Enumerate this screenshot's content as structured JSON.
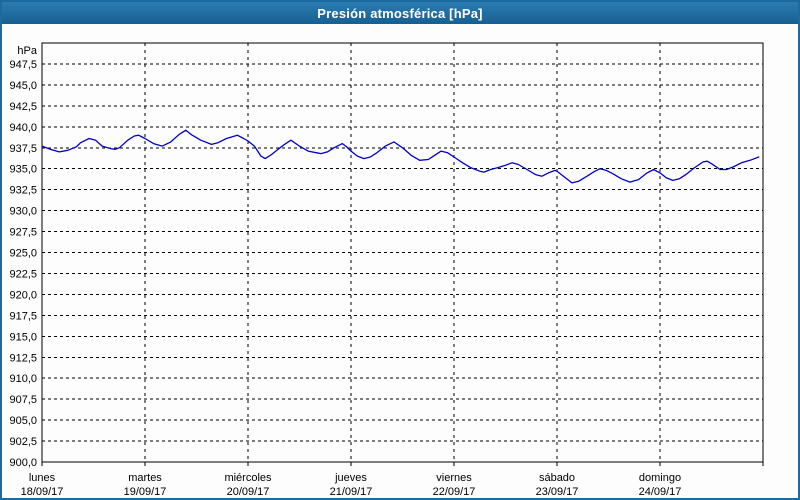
{
  "window": {
    "title": "Presión atmosférica [hPa]"
  },
  "colors": {
    "titlebar": "#1e6a9e",
    "window_border": "#1e6a9e",
    "line": "#0000c8",
    "grid": "#000000",
    "text": "#000000",
    "background": "#fdfdfd"
  },
  "chart_data": {
    "type": "line",
    "title": "Presión atmosférica [hPa]",
    "ylabel": "hPa",
    "y_unit_label": "hPa",
    "ylim": [
      900,
      950
    ],
    "y_tick_step": 2.5,
    "y_tick_labels": [
      "947,5",
      "945,0",
      "942,5",
      "940,0",
      "937,5",
      "935,0",
      "932,5",
      "930,0",
      "927,5",
      "925,0",
      "922,5",
      "920,0",
      "917,5",
      "915,0",
      "912,5",
      "910,0",
      "907,5",
      "905,0",
      "902,5",
      "900,0"
    ],
    "xlim_hours": [
      0,
      168
    ],
    "x_day_step_hours": 24,
    "grid": "dashed",
    "legend": "none",
    "x_days": [
      {
        "name": "lunes",
        "date": "18/09/17"
      },
      {
        "name": "martes",
        "date": "19/09/17"
      },
      {
        "name": "miércoles",
        "date": "20/09/17"
      },
      {
        "name": "jueves",
        "date": "21/09/17"
      },
      {
        "name": "viernes",
        "date": "22/09/17"
      },
      {
        "name": "sábado",
        "date": "23/09/17"
      },
      {
        "name": "domingo",
        "date": "24/09/17"
      }
    ],
    "series": [
      {
        "name": "Presión atmosférica",
        "points_hours_hpa": [
          [
            0,
            937.7
          ],
          [
            2,
            937.3
          ],
          [
            4,
            937.0
          ],
          [
            6,
            937.2
          ],
          [
            8,
            937.6
          ],
          [
            9,
            938.1
          ],
          [
            11,
            938.6
          ],
          [
            12.5,
            938.4
          ],
          [
            14,
            937.7
          ],
          [
            16,
            937.4
          ],
          [
            17,
            937.3
          ],
          [
            18,
            937.5
          ],
          [
            20,
            938.4
          ],
          [
            21.5,
            938.9
          ],
          [
            22.5,
            939.0
          ],
          [
            24,
            938.6
          ],
          [
            26,
            938.0
          ],
          [
            28,
            937.7
          ],
          [
            30,
            938.2
          ],
          [
            32,
            939.1
          ],
          [
            33.5,
            939.6
          ],
          [
            35,
            939.0
          ],
          [
            37,
            938.4
          ],
          [
            39.5,
            937.9
          ],
          [
            41,
            938.1
          ],
          [
            43,
            938.6
          ],
          [
            45.5,
            939.0
          ],
          [
            47,
            938.6
          ],
          [
            48,
            938.3
          ],
          [
            49.5,
            937.7
          ],
          [
            51,
            936.5
          ],
          [
            52,
            936.2
          ],
          [
            53.5,
            936.7
          ],
          [
            55,
            937.3
          ],
          [
            56.5,
            937.9
          ],
          [
            58,
            938.4
          ],
          [
            60,
            937.7
          ],
          [
            62,
            937.1
          ],
          [
            64,
            936.9
          ],
          [
            65,
            936.8
          ],
          [
            66.5,
            937.0
          ],
          [
            68,
            937.5
          ],
          [
            70,
            938.0
          ],
          [
            71,
            937.6
          ],
          [
            72,
            937.1
          ],
          [
            73.5,
            936.5
          ],
          [
            75,
            936.2
          ],
          [
            76.5,
            936.4
          ],
          [
            78,
            936.9
          ],
          [
            80,
            937.7
          ],
          [
            82,
            938.2
          ],
          [
            84,
            937.5
          ],
          [
            86,
            936.6
          ],
          [
            88,
            936.0
          ],
          [
            90,
            936.1
          ],
          [
            91.5,
            936.6
          ],
          [
            93,
            937.1
          ],
          [
            94.5,
            936.9
          ],
          [
            96,
            936.4
          ],
          [
            98,
            935.7
          ],
          [
            100,
            935.1
          ],
          [
            102,
            934.7
          ],
          [
            103,
            934.6
          ],
          [
            104.5,
            934.9
          ],
          [
            106,
            935.1
          ],
          [
            108,
            935.4
          ],
          [
            109.5,
            935.7
          ],
          [
            111,
            935.5
          ],
          [
            113,
            934.9
          ],
          [
            115,
            934.3
          ],
          [
            116.5,
            934.1
          ],
          [
            118,
            934.5
          ],
          [
            119.5,
            934.8
          ],
          [
            120,
            934.7
          ],
          [
            121.5,
            934.1
          ],
          [
            123.5,
            933.3
          ],
          [
            125,
            933.5
          ],
          [
            127,
            934.1
          ],
          [
            128.5,
            934.6
          ],
          [
            130,
            935.0
          ],
          [
            131.5,
            934.8
          ],
          [
            133,
            934.4
          ],
          [
            135,
            933.8
          ],
          [
            137,
            933.4
          ],
          [
            139,
            933.7
          ],
          [
            141,
            934.5
          ],
          [
            142.5,
            934.9
          ],
          [
            144,
            934.5
          ],
          [
            145.5,
            933.9
          ],
          [
            147,
            933.6
          ],
          [
            148.5,
            933.8
          ],
          [
            150,
            934.3
          ],
          [
            152,
            935.1
          ],
          [
            154,
            935.8
          ],
          [
            155,
            935.9
          ],
          [
            156,
            935.6
          ],
          [
            158,
            934.9
          ],
          [
            159.5,
            934.9
          ],
          [
            161,
            935.2
          ],
          [
            163,
            935.7
          ],
          [
            165,
            936.0
          ],
          [
            167,
            936.4
          ]
        ]
      }
    ]
  }
}
